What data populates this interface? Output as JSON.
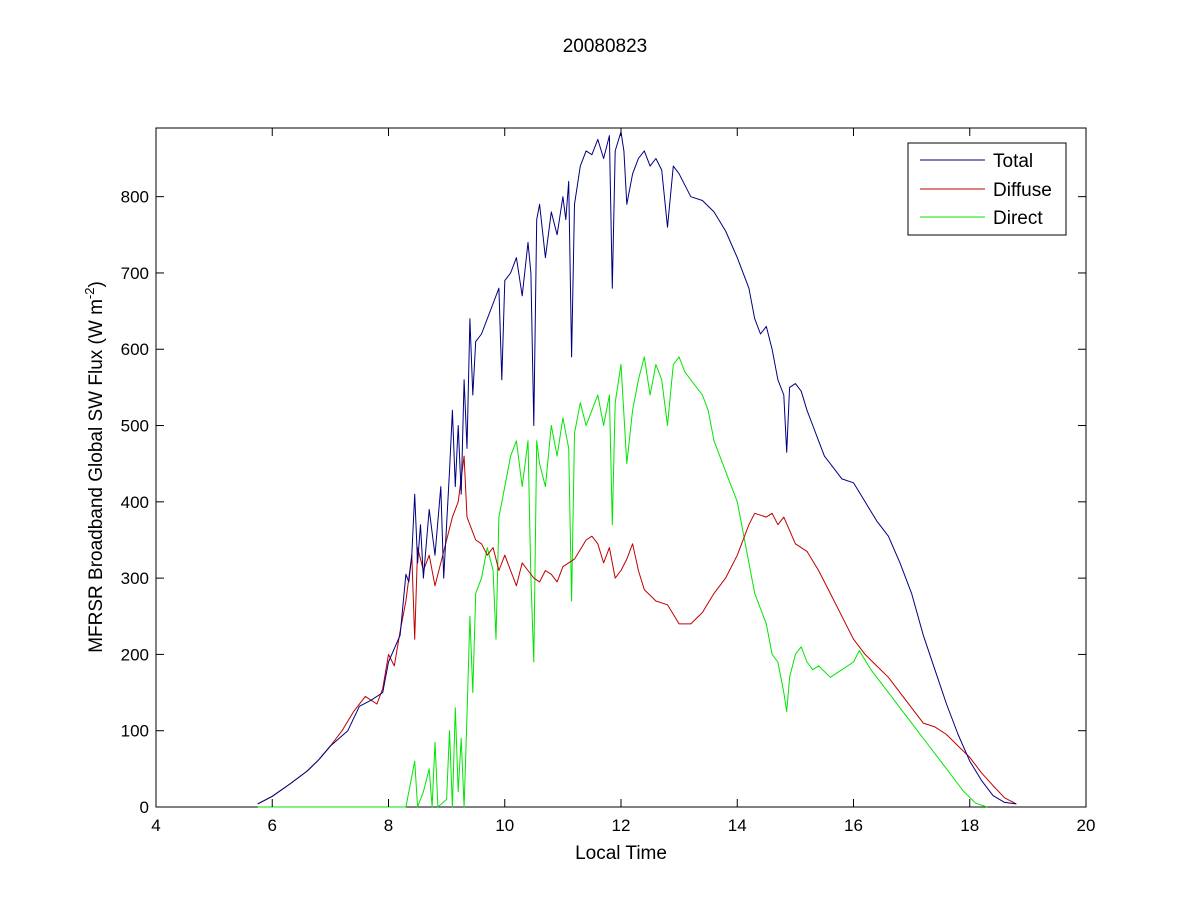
{
  "chart_data": {
    "type": "line",
    "title": "20080823",
    "xlabel": "Local Time",
    "ylabel": {
      "main": "MFRSR Broadband Global SW Flux (W m",
      "sup": "-2",
      "close": ")"
    },
    "xlim": [
      4,
      20
    ],
    "ylim": [
      0,
      890
    ],
    "xticks": [
      4,
      6,
      8,
      10,
      12,
      14,
      16,
      18,
      20
    ],
    "yticks": [
      0,
      100,
      200,
      300,
      400,
      500,
      600,
      700,
      800
    ],
    "grid": false,
    "legend_position": "top-right",
    "series": [
      {
        "name": "Total",
        "color": "#00007f",
        "points": [
          [
            5.75,
            4
          ],
          [
            6.0,
            14
          ],
          [
            6.3,
            30
          ],
          [
            6.6,
            47
          ],
          [
            6.8,
            62
          ],
          [
            7.0,
            80
          ],
          [
            7.3,
            100
          ],
          [
            7.5,
            132
          ],
          [
            7.7,
            140
          ],
          [
            7.9,
            150
          ],
          [
            8.0,
            190
          ],
          [
            8.2,
            225
          ],
          [
            8.3,
            305
          ],
          [
            8.35,
            295
          ],
          [
            8.4,
            330
          ],
          [
            8.45,
            410
          ],
          [
            8.5,
            320
          ],
          [
            8.55,
            370
          ],
          [
            8.6,
            300
          ],
          [
            8.7,
            390
          ],
          [
            8.8,
            330
          ],
          [
            8.9,
            420
          ],
          [
            8.95,
            300
          ],
          [
            9.0,
            370
          ],
          [
            9.05,
            440
          ],
          [
            9.1,
            520
          ],
          [
            9.15,
            420
          ],
          [
            9.2,
            500
          ],
          [
            9.25,
            410
          ],
          [
            9.3,
            560
          ],
          [
            9.35,
            470
          ],
          [
            9.4,
            640
          ],
          [
            9.45,
            540
          ],
          [
            9.5,
            610
          ],
          [
            9.6,
            620
          ],
          [
            9.7,
            640
          ],
          [
            9.8,
            660
          ],
          [
            9.9,
            680
          ],
          [
            9.95,
            560
          ],
          [
            10.0,
            690
          ],
          [
            10.1,
            700
          ],
          [
            10.2,
            720
          ],
          [
            10.3,
            670
          ],
          [
            10.4,
            740
          ],
          [
            10.45,
            700
          ],
          [
            10.5,
            500
          ],
          [
            10.55,
            770
          ],
          [
            10.6,
            790
          ],
          [
            10.7,
            720
          ],
          [
            10.8,
            780
          ],
          [
            10.9,
            750
          ],
          [
            11.0,
            800
          ],
          [
            11.05,
            770
          ],
          [
            11.1,
            820
          ],
          [
            11.15,
            590
          ],
          [
            11.2,
            790
          ],
          [
            11.3,
            840
          ],
          [
            11.4,
            860
          ],
          [
            11.5,
            855
          ],
          [
            11.6,
            875
          ],
          [
            11.7,
            850
          ],
          [
            11.8,
            880
          ],
          [
            11.85,
            680
          ],
          [
            11.9,
            860
          ],
          [
            12.0,
            885
          ],
          [
            12.05,
            860
          ],
          [
            12.1,
            790
          ],
          [
            12.2,
            830
          ],
          [
            12.3,
            850
          ],
          [
            12.4,
            860
          ],
          [
            12.5,
            840
          ],
          [
            12.6,
            850
          ],
          [
            12.7,
            835
          ],
          [
            12.8,
            760
          ],
          [
            12.9,
            840
          ],
          [
            13.0,
            830
          ],
          [
            13.2,
            800
          ],
          [
            13.4,
            795
          ],
          [
            13.6,
            780
          ],
          [
            13.8,
            755
          ],
          [
            14.0,
            720
          ],
          [
            14.2,
            680
          ],
          [
            14.3,
            640
          ],
          [
            14.4,
            620
          ],
          [
            14.5,
            630
          ],
          [
            14.6,
            600
          ],
          [
            14.7,
            560
          ],
          [
            14.8,
            540
          ],
          [
            14.85,
            465
          ],
          [
            14.9,
            550
          ],
          [
            15.0,
            555
          ],
          [
            15.1,
            545
          ],
          [
            15.2,
            520
          ],
          [
            15.3,
            500
          ],
          [
            15.4,
            480
          ],
          [
            15.5,
            460
          ],
          [
            15.6,
            450
          ],
          [
            15.8,
            430
          ],
          [
            16.0,
            425
          ],
          [
            16.2,
            400
          ],
          [
            16.4,
            375
          ],
          [
            16.6,
            355
          ],
          [
            16.8,
            320
          ],
          [
            17.0,
            280
          ],
          [
            17.2,
            225
          ],
          [
            17.4,
            180
          ],
          [
            17.6,
            135
          ],
          [
            17.8,
            95
          ],
          [
            18.0,
            60
          ],
          [
            18.2,
            35
          ],
          [
            18.4,
            15
          ],
          [
            18.6,
            6
          ],
          [
            18.8,
            4
          ]
        ]
      },
      {
        "name": "Diffuse",
        "color": "#bf0000",
        "points": [
          [
            5.75,
            4
          ],
          [
            6.0,
            14
          ],
          [
            6.3,
            30
          ],
          [
            6.6,
            47
          ],
          [
            6.8,
            62
          ],
          [
            7.0,
            80
          ],
          [
            7.2,
            100
          ],
          [
            7.4,
            125
          ],
          [
            7.6,
            145
          ],
          [
            7.8,
            135
          ],
          [
            7.9,
            155
          ],
          [
            8.0,
            200
          ],
          [
            8.1,
            185
          ],
          [
            8.2,
            230
          ],
          [
            8.3,
            270
          ],
          [
            8.4,
            330
          ],
          [
            8.45,
            220
          ],
          [
            8.5,
            340
          ],
          [
            8.6,
            310
          ],
          [
            8.7,
            330
          ],
          [
            8.8,
            290
          ],
          [
            8.9,
            320
          ],
          [
            9.0,
            350
          ],
          [
            9.1,
            380
          ],
          [
            9.2,
            400
          ],
          [
            9.3,
            460
          ],
          [
            9.35,
            380
          ],
          [
            9.4,
            370
          ],
          [
            9.5,
            350
          ],
          [
            9.6,
            345
          ],
          [
            9.7,
            330
          ],
          [
            9.8,
            340
          ],
          [
            9.9,
            310
          ],
          [
            10.0,
            330
          ],
          [
            10.1,
            310
          ],
          [
            10.2,
            290
          ],
          [
            10.3,
            320
          ],
          [
            10.4,
            310
          ],
          [
            10.5,
            300
          ],
          [
            10.6,
            295
          ],
          [
            10.7,
            310
          ],
          [
            10.8,
            305
          ],
          [
            10.9,
            295
          ],
          [
            11.0,
            315
          ],
          [
            11.2,
            325
          ],
          [
            11.4,
            350
          ],
          [
            11.5,
            355
          ],
          [
            11.6,
            345
          ],
          [
            11.7,
            320
          ],
          [
            11.8,
            340
          ],
          [
            11.9,
            300
          ],
          [
            12.0,
            310
          ],
          [
            12.1,
            325
          ],
          [
            12.2,
            345
          ],
          [
            12.3,
            310
          ],
          [
            12.4,
            285
          ],
          [
            12.6,
            270
          ],
          [
            12.8,
            265
          ],
          [
            13.0,
            240
          ],
          [
            13.2,
            240
          ],
          [
            13.4,
            255
          ],
          [
            13.6,
            280
          ],
          [
            13.8,
            300
          ],
          [
            14.0,
            330
          ],
          [
            14.2,
            370
          ],
          [
            14.3,
            385
          ],
          [
            14.5,
            380
          ],
          [
            14.6,
            385
          ],
          [
            14.7,
            370
          ],
          [
            14.8,
            380
          ],
          [
            15.0,
            345
          ],
          [
            15.2,
            335
          ],
          [
            15.4,
            310
          ],
          [
            15.6,
            280
          ],
          [
            15.8,
            250
          ],
          [
            16.0,
            220
          ],
          [
            16.2,
            200
          ],
          [
            16.4,
            185
          ],
          [
            16.6,
            170
          ],
          [
            16.8,
            150
          ],
          [
            17.0,
            130
          ],
          [
            17.2,
            110
          ],
          [
            17.4,
            105
          ],
          [
            17.6,
            95
          ],
          [
            17.8,
            80
          ],
          [
            18.0,
            65
          ],
          [
            18.2,
            45
          ],
          [
            18.4,
            28
          ],
          [
            18.6,
            12
          ],
          [
            18.8,
            4
          ]
        ]
      },
      {
        "name": "Direct",
        "color": "#00e600",
        "points": [
          [
            5.75,
            0
          ],
          [
            8.3,
            0
          ],
          [
            8.45,
            60
          ],
          [
            8.5,
            0
          ],
          [
            8.6,
            20
          ],
          [
            8.7,
            50
          ],
          [
            8.75,
            0
          ],
          [
            8.8,
            85
          ],
          [
            8.85,
            0
          ],
          [
            9.0,
            10
          ],
          [
            9.05,
            100
          ],
          [
            9.1,
            0
          ],
          [
            9.15,
            130
          ],
          [
            9.2,
            20
          ],
          [
            9.25,
            90
          ],
          [
            9.3,
            0
          ],
          [
            9.35,
            120
          ],
          [
            9.4,
            250
          ],
          [
            9.45,
            150
          ],
          [
            9.5,
            280
          ],
          [
            9.6,
            300
          ],
          [
            9.7,
            340
          ],
          [
            9.8,
            310
          ],
          [
            9.85,
            220
          ],
          [
            9.9,
            380
          ],
          [
            10.0,
            420
          ],
          [
            10.1,
            460
          ],
          [
            10.2,
            480
          ],
          [
            10.3,
            420
          ],
          [
            10.4,
            480
          ],
          [
            10.45,
            300
          ],
          [
            10.5,
            190
          ],
          [
            10.55,
            480
          ],
          [
            10.6,
            450
          ],
          [
            10.7,
            420
          ],
          [
            10.8,
            500
          ],
          [
            10.9,
            460
          ],
          [
            11.0,
            510
          ],
          [
            11.1,
            470
          ],
          [
            11.15,
            270
          ],
          [
            11.2,
            490
          ],
          [
            11.3,
            530
          ],
          [
            11.4,
            500
          ],
          [
            11.5,
            520
          ],
          [
            11.6,
            540
          ],
          [
            11.7,
            500
          ],
          [
            11.8,
            540
          ],
          [
            11.85,
            370
          ],
          [
            11.9,
            530
          ],
          [
            12.0,
            580
          ],
          [
            12.1,
            450
          ],
          [
            12.2,
            520
          ],
          [
            12.3,
            560
          ],
          [
            12.4,
            590
          ],
          [
            12.5,
            540
          ],
          [
            12.6,
            580
          ],
          [
            12.7,
            560
          ],
          [
            12.8,
            500
          ],
          [
            12.9,
            580
          ],
          [
            13.0,
            590
          ],
          [
            13.1,
            570
          ],
          [
            13.2,
            560
          ],
          [
            13.4,
            540
          ],
          [
            13.5,
            520
          ],
          [
            13.6,
            480
          ],
          [
            13.7,
            460
          ],
          [
            13.8,
            440
          ],
          [
            13.9,
            420
          ],
          [
            14.0,
            400
          ],
          [
            14.1,
            360
          ],
          [
            14.2,
            320
          ],
          [
            14.3,
            280
          ],
          [
            14.4,
            260
          ],
          [
            14.5,
            240
          ],
          [
            14.6,
            200
          ],
          [
            14.7,
            190
          ],
          [
            14.8,
            150
          ],
          [
            14.85,
            125
          ],
          [
            14.9,
            170
          ],
          [
            15.0,
            200
          ],
          [
            15.1,
            210
          ],
          [
            15.2,
            190
          ],
          [
            15.3,
            180
          ],
          [
            15.4,
            185
          ],
          [
            15.6,
            170
          ],
          [
            15.8,
            180
          ],
          [
            16.0,
            190
          ],
          [
            16.1,
            205
          ],
          [
            16.3,
            180
          ],
          [
            16.5,
            160
          ],
          [
            16.7,
            140
          ],
          [
            16.9,
            120
          ],
          [
            17.1,
            100
          ],
          [
            17.3,
            80
          ],
          [
            17.5,
            60
          ],
          [
            17.7,
            40
          ],
          [
            17.9,
            20
          ],
          [
            18.1,
            5
          ],
          [
            18.3,
            0
          ]
        ]
      }
    ]
  }
}
